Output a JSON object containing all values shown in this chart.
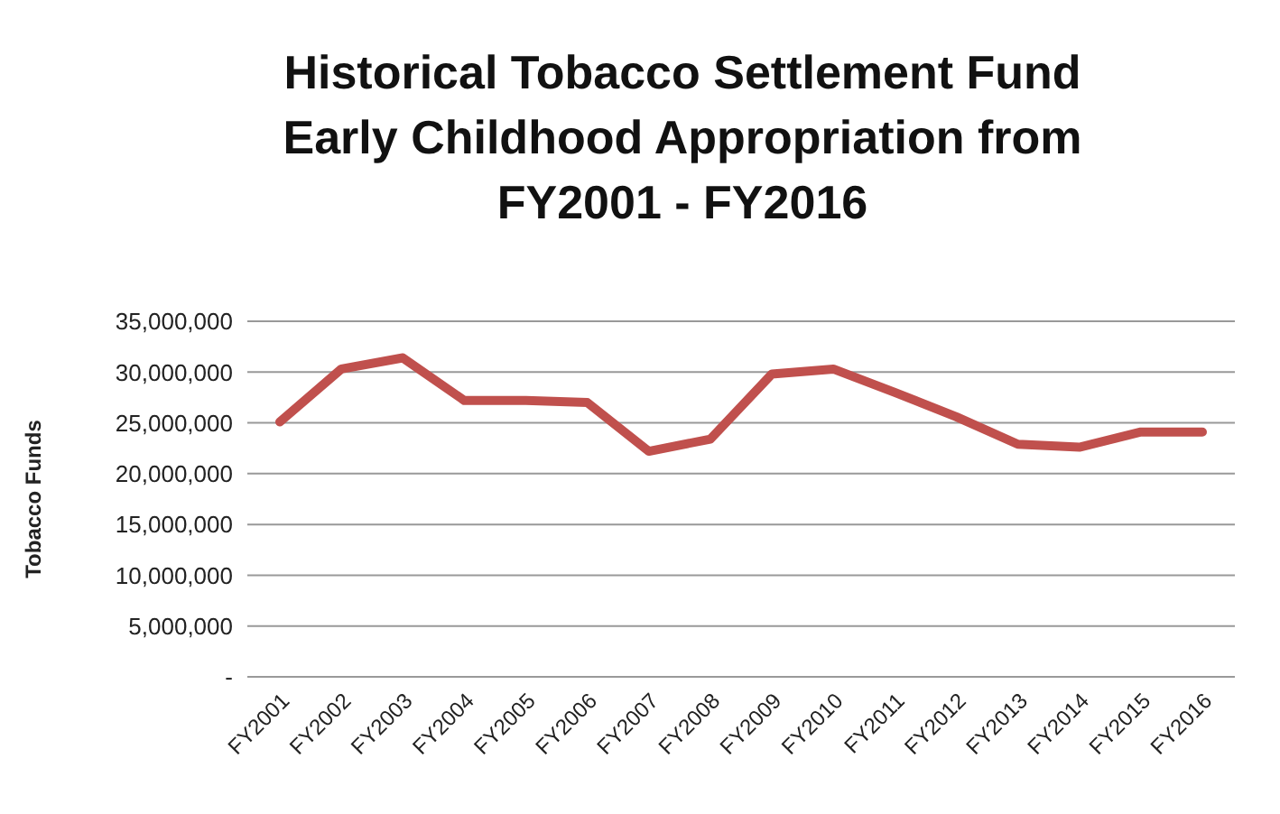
{
  "chart_data": {
    "type": "line",
    "title": "Historical Tobacco Settlement Fund Early Childhood Appropriation from FY2001 - FY2016",
    "ylabel": "Tobacco Funds",
    "categories": [
      "FY2001",
      "FY2002",
      "FY2003",
      "FY2004",
      "FY2005",
      "FY2006",
      "FY2007",
      "FY2008",
      "FY2009",
      "FY2010",
      "FY2011",
      "FY2012",
      "FY2013",
      "FY2014",
      "FY2015",
      "FY2016"
    ],
    "series": [
      {
        "color": "#c0504d",
        "values": [
          25100000,
          30300000,
          31400000,
          27200000,
          27200000,
          27000000,
          22200000,
          23400000,
          29800000,
          30300000,
          28000000,
          25600000,
          22900000,
          22600000,
          24100000,
          24100000
        ]
      }
    ],
    "ylim": [
      0,
      35000000
    ],
    "yticks": [
      {
        "value": 0,
        "label": "-"
      },
      {
        "value": 5000000,
        "label": "5,000,000"
      },
      {
        "value": 10000000,
        "label": "10,000,000"
      },
      {
        "value": 15000000,
        "label": "15,000,000"
      },
      {
        "value": 20000000,
        "label": "20,000,000"
      },
      {
        "value": 25000000,
        "label": "25,000,000"
      },
      {
        "value": 30000000,
        "label": "30,000,000"
      },
      {
        "value": 35000000,
        "label": "35,000,000"
      }
    ],
    "grid": "y",
    "legend": false,
    "marker": "none",
    "line_style": "solid"
  }
}
